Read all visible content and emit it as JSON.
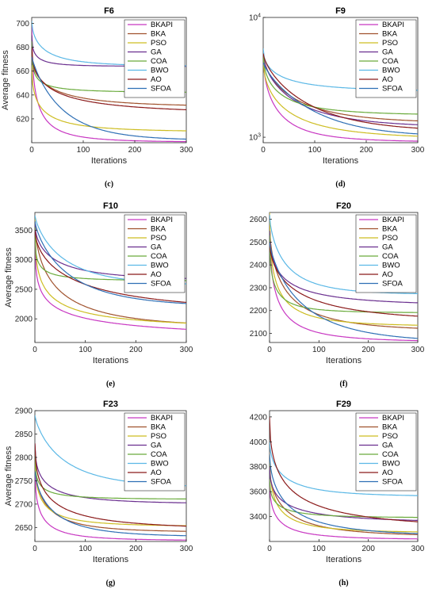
{
  "figure": {
    "xlabel": "Iterations",
    "ylabel": "Average fitness",
    "legend": [
      "BKAPI",
      "BKA",
      "PSO",
      "GA",
      "COA",
      "BWO",
      "AO",
      "SFOA"
    ],
    "colors": {
      "BKAPI": "#c837c2",
      "BKA": "#a0522d",
      "PSO": "#cdbd22",
      "GA": "#6a2f8f",
      "COA": "#6aab3c",
      "BWO": "#5bb8e6",
      "AO": "#8b1a1a",
      "SFOA": "#2e6fb5"
    }
  },
  "chart_data": [
    {
      "type": "line",
      "title": "F6",
      "panel": "(c)",
      "xlabel": "Iterations",
      "ylabel": "Average fitness",
      "xlim": [
        0,
        300
      ],
      "ylim": [
        600,
        705
      ],
      "yscale": "linear",
      "xticks": [
        0,
        100,
        200,
        300
      ],
      "yticks": [
        620,
        640,
        660,
        680,
        700
      ],
      "legend_position": "top-right",
      "series": [
        {
          "name": "BKAPI",
          "start": 700,
          "end": 600.5,
          "tau": 10,
          "k": 0.5
        },
        {
          "name": "BKA",
          "start": 672,
          "end": 630,
          "tau": 40,
          "k": 0.6
        },
        {
          "name": "PSO",
          "start": 665,
          "end": 609,
          "tau": 18,
          "k": 0.5
        },
        {
          "name": "GA",
          "start": 690,
          "end": 664,
          "tau": 8,
          "k": 0.5
        },
        {
          "name": "COA",
          "start": 685,
          "end": 642,
          "tau": 6,
          "k": 0.4
        },
        {
          "name": "BWO",
          "start": 702,
          "end": 664,
          "tau": 25,
          "k": 0.6
        },
        {
          "name": "AO",
          "start": 680,
          "end": 624,
          "tau": 40,
          "k": 0.5
        },
        {
          "name": "SFOA",
          "start": 672,
          "end": 602,
          "tau": 60,
          "k": 0.9
        }
      ]
    },
    {
      "type": "line",
      "title": "F9",
      "panel": "(d)",
      "xlabel": "Iterations",
      "ylabel": "",
      "xlim": [
        0,
        300
      ],
      "ylim": [
        900,
        10000
      ],
      "yscale": "log",
      "xticks": [
        0,
        100,
        200,
        300
      ],
      "yticks": [
        1000,
        10000
      ],
      "ytick_labels": [
        "10^3",
        "10^4"
      ],
      "legend_position": "top-right",
      "series": [
        {
          "name": "BKAPI",
          "start": 5000,
          "end": 910,
          "tau": 10,
          "k": 0.5
        },
        {
          "name": "BKA",
          "start": 5000,
          "end": 1300,
          "tau": 30,
          "k": 0.6
        },
        {
          "name": "PSO",
          "start": 4500,
          "end": 960,
          "tau": 18,
          "k": 0.5
        },
        {
          "name": "GA",
          "start": 5000,
          "end": 1200,
          "tau": 30,
          "k": 0.6
        },
        {
          "name": "COA",
          "start": 5000,
          "end": 1520,
          "tau": 15,
          "k": 0.5
        },
        {
          "name": "BWO",
          "start": 5500,
          "end": 2400,
          "tau": 20,
          "k": 0.5
        },
        {
          "name": "AO",
          "start": 5000,
          "end": 1100,
          "tau": 45,
          "k": 0.7
        },
        {
          "name": "SFOA",
          "start": 4200,
          "end": 1000,
          "tau": 55,
          "k": 0.8
        }
      ]
    },
    {
      "type": "line",
      "title": "F10",
      "panel": "(e)",
      "xlabel": "Iterations",
      "ylabel": "Average fitness",
      "xlim": [
        0,
        300
      ],
      "ylim": [
        1600,
        3800
      ],
      "yscale": "linear",
      "xticks": [
        0,
        100,
        200,
        300
      ],
      "yticks": [
        2000,
        2500,
        3000,
        3500
      ],
      "legend_position": "top-right",
      "series": [
        {
          "name": "BKAPI",
          "start": 3700,
          "end": 1620,
          "tau": 18,
          "k": 0.3
        },
        {
          "name": "BKA",
          "start": 3650,
          "end": 1850,
          "tau": 45,
          "k": 0.6
        },
        {
          "name": "PSO",
          "start": 3700,
          "end": 1830,
          "tau": 20,
          "k": 0.4
        },
        {
          "name": "GA",
          "start": 3600,
          "end": 2650,
          "tau": 40,
          "k": 0.6
        },
        {
          "name": "COA",
          "start": 3550,
          "end": 2640,
          "tau": 6,
          "k": 0.4
        },
        {
          "name": "BWO",
          "start": 3750,
          "end": 2560,
          "tau": 60,
          "k": 0.8
        },
        {
          "name": "AO",
          "start": 3500,
          "end": 2100,
          "tau": 90,
          "k": 0.6
        },
        {
          "name": "SFOA",
          "start": 3650,
          "end": 2200,
          "tau": 70,
          "k": 0.8
        }
      ]
    },
    {
      "type": "line",
      "title": "F20",
      "panel": "(f)",
      "xlabel": "Iterations",
      "ylabel": "",
      "xlim": [
        0,
        300
      ],
      "ylim": [
        2060,
        2630
      ],
      "yscale": "linear",
      "xticks": [
        0,
        100,
        200,
        300
      ],
      "yticks": [
        2100,
        2200,
        2300,
        2400,
        2500,
        2600
      ],
      "legend_position": "top-right",
      "series": [
        {
          "name": "BKAPI",
          "start": 2600,
          "end": 2062,
          "tau": 15,
          "k": 0.5
        },
        {
          "name": "BKA",
          "start": 2580,
          "end": 2110,
          "tau": 35,
          "k": 0.6
        },
        {
          "name": "PSO",
          "start": 2630,
          "end": 2130,
          "tau": 15,
          "k": 0.5
        },
        {
          "name": "GA",
          "start": 2550,
          "end": 2220,
          "tau": 30,
          "k": 0.5
        },
        {
          "name": "COA",
          "start": 2530,
          "end": 2190,
          "tau": 10,
          "k": 0.5
        },
        {
          "name": "BWO",
          "start": 2620,
          "end": 2270,
          "tau": 35,
          "k": 0.7
        },
        {
          "name": "AO",
          "start": 2500,
          "end": 2150,
          "tau": 60,
          "k": 0.6
        },
        {
          "name": "SFOA",
          "start": 2500,
          "end": 2060,
          "tau": 70,
          "k": 0.8
        }
      ]
    },
    {
      "type": "line",
      "title": "F23",
      "panel": "(g)",
      "xlabel": "Iterations",
      "ylabel": "Average fitness",
      "xlim": [
        0,
        300
      ],
      "ylim": [
        2620,
        2900
      ],
      "yscale": "linear",
      "xticks": [
        0,
        100,
        200,
        300
      ],
      "yticks": [
        2650,
        2700,
        2750,
        2800,
        2850,
        2900
      ],
      "legend_position": "top-right",
      "series": [
        {
          "name": "BKAPI",
          "start": 2780,
          "end": 2622,
          "tau": 12,
          "k": 0.5
        },
        {
          "name": "BKA",
          "start": 2790,
          "end": 2640,
          "tau": 25,
          "k": 0.6
        },
        {
          "name": "PSO",
          "start": 2800,
          "end": 2652,
          "tau": 15,
          "k": 0.5
        },
        {
          "name": "GA",
          "start": 2830,
          "end": 2700,
          "tau": 20,
          "k": 0.5
        },
        {
          "name": "COA",
          "start": 2820,
          "end": 2710,
          "tau": 6,
          "k": 0.4
        },
        {
          "name": "BWO",
          "start": 2890,
          "end": 2735,
          "tau": 60,
          "k": 0.8
        },
        {
          "name": "AO",
          "start": 2830,
          "end": 2645,
          "tau": 30,
          "k": 0.5
        },
        {
          "name": "SFOA",
          "start": 2770,
          "end": 2630,
          "tau": 40,
          "k": 0.7
        }
      ]
    },
    {
      "type": "line",
      "title": "F29",
      "panel": "(h)",
      "xlabel": "Iterations",
      "ylabel": "",
      "xlim": [
        0,
        300
      ],
      "ylim": [
        3200,
        4250
      ],
      "yscale": "linear",
      "xticks": [
        0,
        100,
        200,
        300
      ],
      "yticks": [
        3400,
        3600,
        3800,
        4000,
        4200
      ],
      "legend_position": "top-right",
      "series": [
        {
          "name": "BKAPI",
          "start": 3700,
          "end": 3215,
          "tau": 15,
          "k": 0.5
        },
        {
          "name": "BKA",
          "start": 3800,
          "end": 3240,
          "tau": 35,
          "k": 0.6
        },
        {
          "name": "PSO",
          "start": 3900,
          "end": 3270,
          "tau": 15,
          "k": 0.5
        },
        {
          "name": "GA",
          "start": 3800,
          "end": 3350,
          "tau": 30,
          "k": 0.5
        },
        {
          "name": "COA",
          "start": 3700,
          "end": 3390,
          "tau": 15,
          "k": 0.5
        },
        {
          "name": "BWO",
          "start": 4000,
          "end": 3560,
          "tau": 30,
          "k": 0.6
        },
        {
          "name": "AO",
          "start": 4200,
          "end": 3300,
          "tau": 40,
          "k": 0.5
        },
        {
          "name": "SFOA",
          "start": 3900,
          "end": 3240,
          "tau": 40,
          "k": 0.6
        }
      ]
    }
  ]
}
